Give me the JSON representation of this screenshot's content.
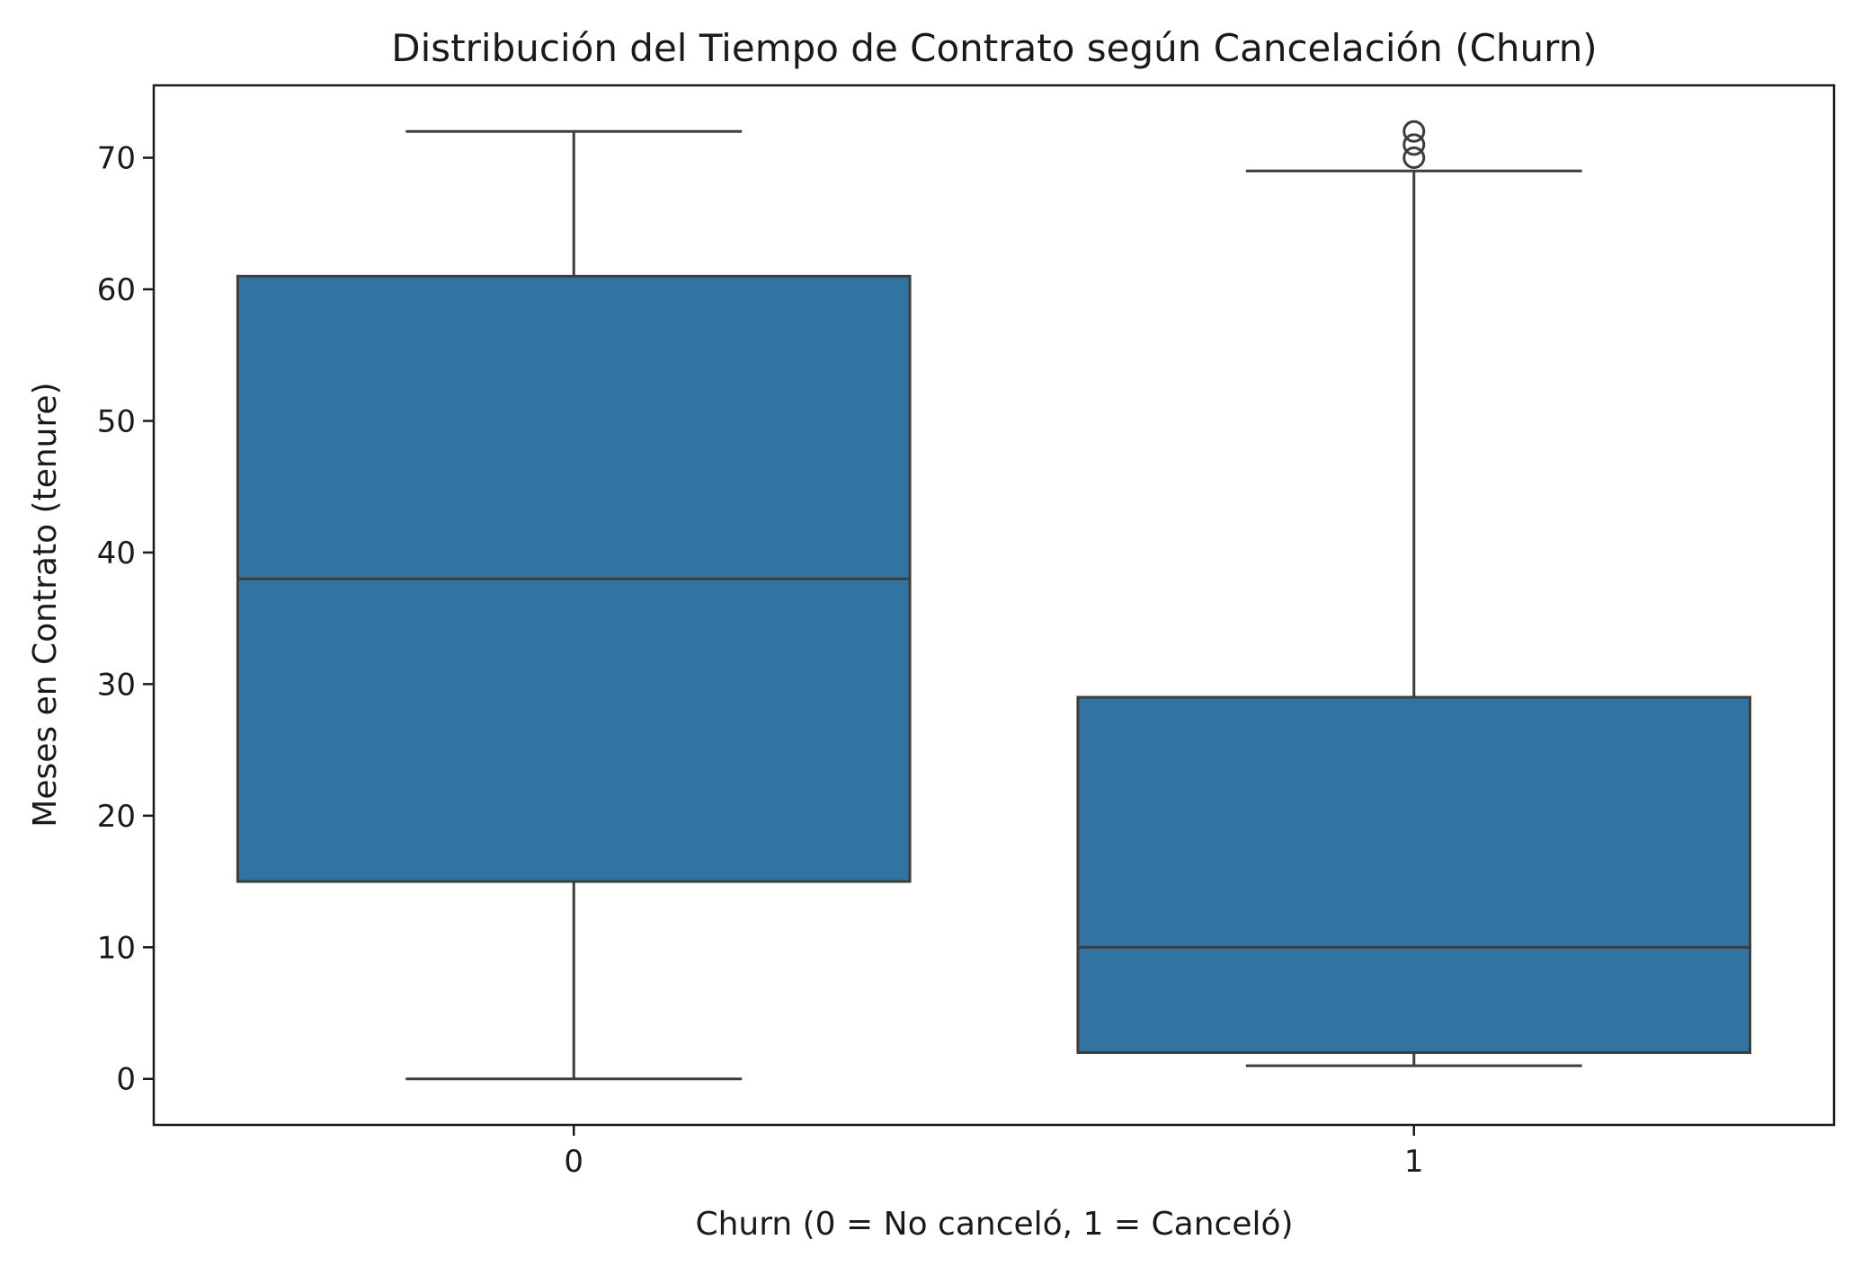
{
  "chart_data": {
    "type": "box",
    "title": "Distribución del Tiempo de Contrato según Cancelación (Churn)",
    "xlabel": "Churn (0 = No canceló, 1 = Canceló)",
    "ylabel": "Meses en Contrato (tenure)",
    "categories": [
      "0",
      "1"
    ],
    "boxes": [
      {
        "category": "0",
        "whisker_low": 0,
        "q1": 15,
        "median": 38,
        "q3": 61,
        "whisker_high": 72,
        "outliers": []
      },
      {
        "category": "1",
        "whisker_low": 1,
        "q1": 2,
        "median": 10,
        "q3": 29,
        "whisker_high": 69,
        "outliers": [
          70,
          71,
          72
        ]
      }
    ],
    "ylim": [
      -3.5,
      75.5
    ],
    "yticks": [
      0,
      10,
      20,
      30,
      40,
      50,
      60,
      70
    ],
    "grid": false,
    "colors": {
      "box_fill": "#3274a1",
      "line": "#3d3d3d",
      "axis": "#1a1a1a"
    }
  }
}
